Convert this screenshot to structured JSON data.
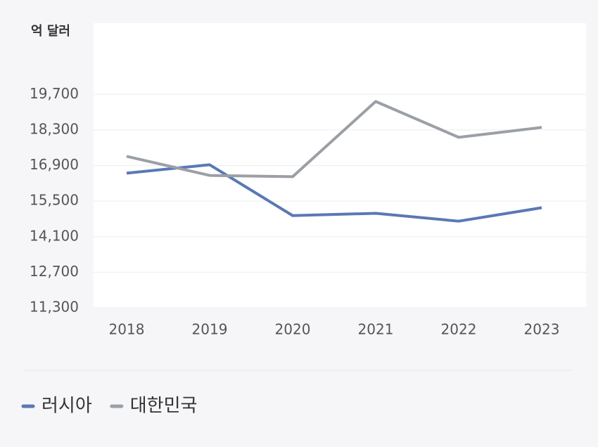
{
  "chart_data": {
    "type": "line",
    "y_label": "억 달러",
    "categories": [
      "2018",
      "2019",
      "2020",
      "2021",
      "2022",
      "2023"
    ],
    "series": [
      {
        "name": "러시아",
        "color": "#5a78b5",
        "values": [
          16600,
          16930,
          14930,
          15020,
          14710,
          15240
        ]
      },
      {
        "name": "대한민국",
        "color": "#9b9fa6",
        "values": [
          17260,
          16510,
          16460,
          19420,
          18010,
          18400
        ]
      }
    ],
    "ylim": [
      11300,
      22500
    ],
    "yticks": [
      {
        "value": 11300,
        "label": "11,300"
      },
      {
        "value": 12700,
        "label": "12,700"
      },
      {
        "value": 14100,
        "label": "14,100"
      },
      {
        "value": 15500,
        "label": "15,500"
      },
      {
        "value": 16900,
        "label": "16,900"
      },
      {
        "value": 18300,
        "label": "18,300"
      },
      {
        "value": 19700,
        "label": "19,700"
      }
    ],
    "grid": true,
    "legend": "bottom"
  }
}
